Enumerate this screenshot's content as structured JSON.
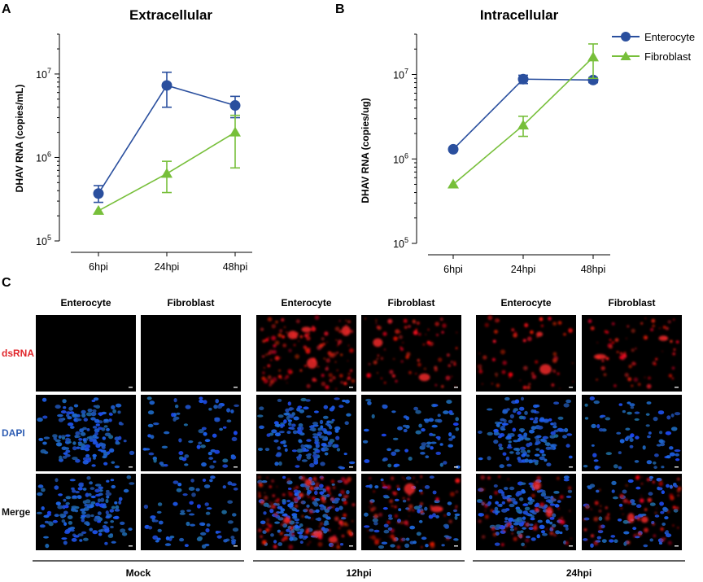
{
  "colors": {
    "enterocyte": "#2a4f9e",
    "fibroblast": "#77bf3a",
    "dsRNA_label": "#e0262b",
    "DAPI_label": "#2e5db3"
  },
  "legend": {
    "placement": "top-right",
    "items": [
      {
        "name": "Enterocyte",
        "marker": "circle"
      },
      {
        "name": "Fibroblast",
        "marker": "triangle"
      }
    ]
  },
  "chart_data": [
    {
      "panel": "A",
      "type": "line",
      "title": "Extracellular",
      "ylabel": "DHAV RNA (copies/mL)",
      "xlabel": "",
      "categories": [
        "6hpi",
        "24hpi",
        "48hpi"
      ],
      "yscale": "log",
      "ylim": [
        100000,
        30000000
      ],
      "yticks": [
        100000,
        1000000,
        10000000
      ],
      "ytick_labels": [
        {
          "base": "10",
          "exp": "5"
        },
        {
          "base": "10",
          "exp": "6"
        },
        {
          "base": "10",
          "exp": "7"
        }
      ],
      "series": [
        {
          "name": "Enterocyte",
          "values": [
            370000,
            7300000,
            4200000
          ],
          "err_low": [
            290000,
            4000000,
            3000000
          ],
          "err_high": [
            460000,
            10500000,
            5400000
          ]
        },
        {
          "name": "Fibroblast",
          "values": [
            230000,
            640000,
            2000000
          ],
          "err_low": [
            230000,
            380000,
            750000
          ],
          "err_high": [
            230000,
            900000,
            3200000
          ]
        }
      ]
    },
    {
      "panel": "B",
      "type": "line",
      "title": "Intracellular",
      "ylabel": "DHAV RNA (copies/ug)",
      "xlabel": "",
      "categories": [
        "6hpi",
        "24hpi",
        "48hpi"
      ],
      "yscale": "log",
      "ylim": [
        100000,
        30000000
      ],
      "yticks": [
        100000,
        1000000,
        10000000
      ],
      "ytick_labels": [
        {
          "base": "10",
          "exp": "5"
        },
        {
          "base": "10",
          "exp": "6"
        },
        {
          "base": "10",
          "exp": "7"
        }
      ],
      "series": [
        {
          "name": "Enterocyte",
          "values": [
            1300000,
            8800000,
            8600000
          ],
          "err_low": [
            1300000,
            7800000,
            8000000
          ],
          "err_high": [
            1300000,
            9800000,
            9200000
          ]
        },
        {
          "name": "Fibroblast",
          "values": [
            500000,
            2500000,
            16000000
          ],
          "err_low": [
            500000,
            1850000,
            9000000
          ],
          "err_high": [
            500000,
            3200000,
            23000000
          ]
        }
      ]
    }
  ],
  "panel_c": {
    "letter": "C",
    "groups": [
      {
        "label": "Mock",
        "columns": [
          "Enterocyte",
          "Fibroblast"
        ]
      },
      {
        "label": "12hpi",
        "columns": [
          "Enterocyte",
          "Fibroblast"
        ]
      },
      {
        "label": "24hpi",
        "columns": [
          "Enterocyte",
          "Fibroblast"
        ]
      }
    ],
    "rows": [
      "dsRNA",
      "DAPI",
      "Merge"
    ],
    "red_signal_level": [
      [
        0,
        0
      ],
      [
        0.8,
        0.45
      ],
      [
        0.35,
        0.4
      ]
    ]
  }
}
